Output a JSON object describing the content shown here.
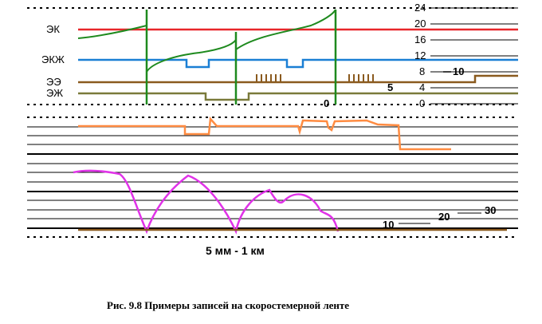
{
  "track_labels": [
    "ЭК",
    "ЭКЖ",
    "ЭЭ",
    "ЭЖ"
  ],
  "speed_scale": [
    "24",
    "20",
    "16",
    "12",
    "8",
    "4",
    "0"
  ],
  "misc_numbers": {
    "ee_level": "10",
    "ezh_level": "5",
    "zero_mark": "0"
  },
  "bottom_numbers": [
    "10",
    "20",
    "30"
  ],
  "scale_text": "5 мм - 1 км",
  "caption": "Рис.  9.8  Примеры записей на скоростемерной ленте",
  "colors": {
    "ek_line": "#e8262a",
    "speed_curve": "#1e8a1e",
    "ekzh": "#1a7fd4",
    "ee": "#8a5a1e",
    "ezh": "#7a7a3a",
    "orange": "#ff8c42",
    "magenta": "#e033e8"
  }
}
